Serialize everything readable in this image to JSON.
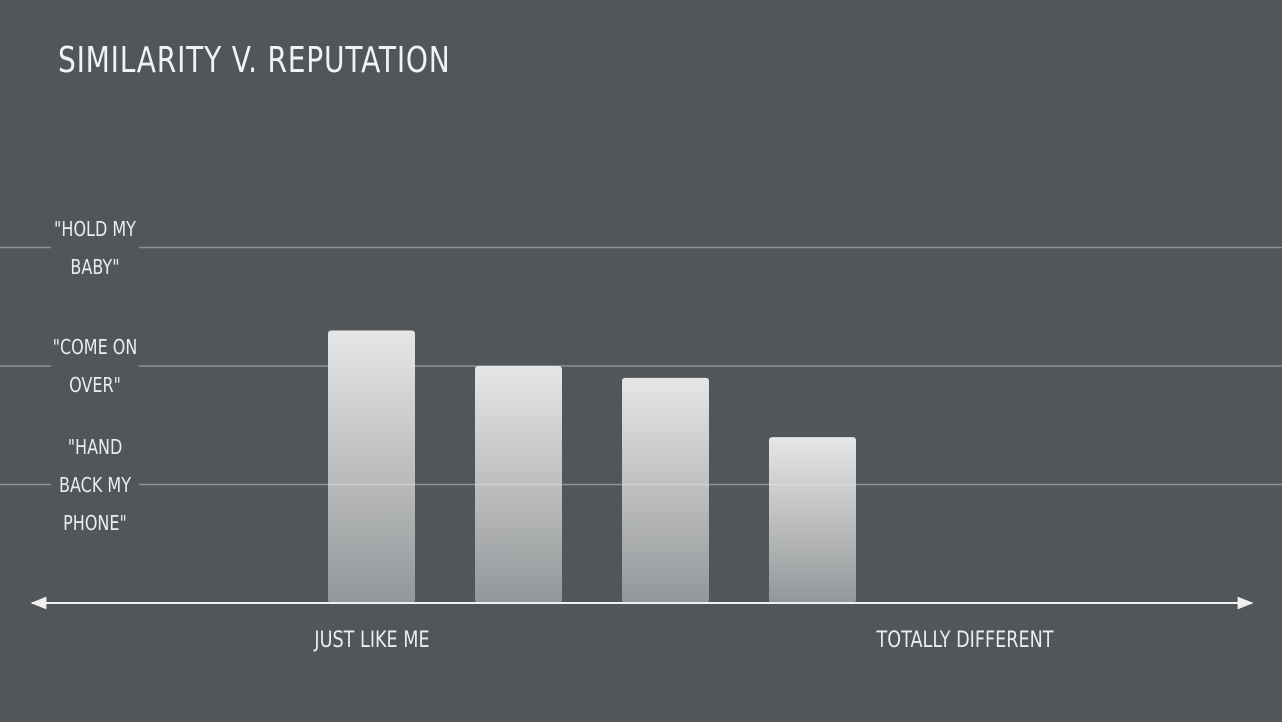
{
  "chart_data": {
    "type": "bar",
    "title": "SIMILARITY V. REPUTATION",
    "categories": [
      null,
      null,
      null,
      null
    ],
    "values": [
      2.3,
      2.0,
      1.9,
      1.4
    ],
    "color": "#e6e6e6",
    "ylim": [
      0,
      4
    ],
    "yticks": [
      {
        "value": 1,
        "label": "\"HAND BACK MY PHONE\""
      },
      {
        "value": 2,
        "label": "\"COME ON OVER\""
      },
      {
        "value": 3,
        "label": "\"HOLD MY BABY\""
      }
    ],
    "grid": true,
    "x_axis_labels": {
      "left": "JUST LIKE ME",
      "right": "TOTALLY DIFFERENT"
    }
  }
}
